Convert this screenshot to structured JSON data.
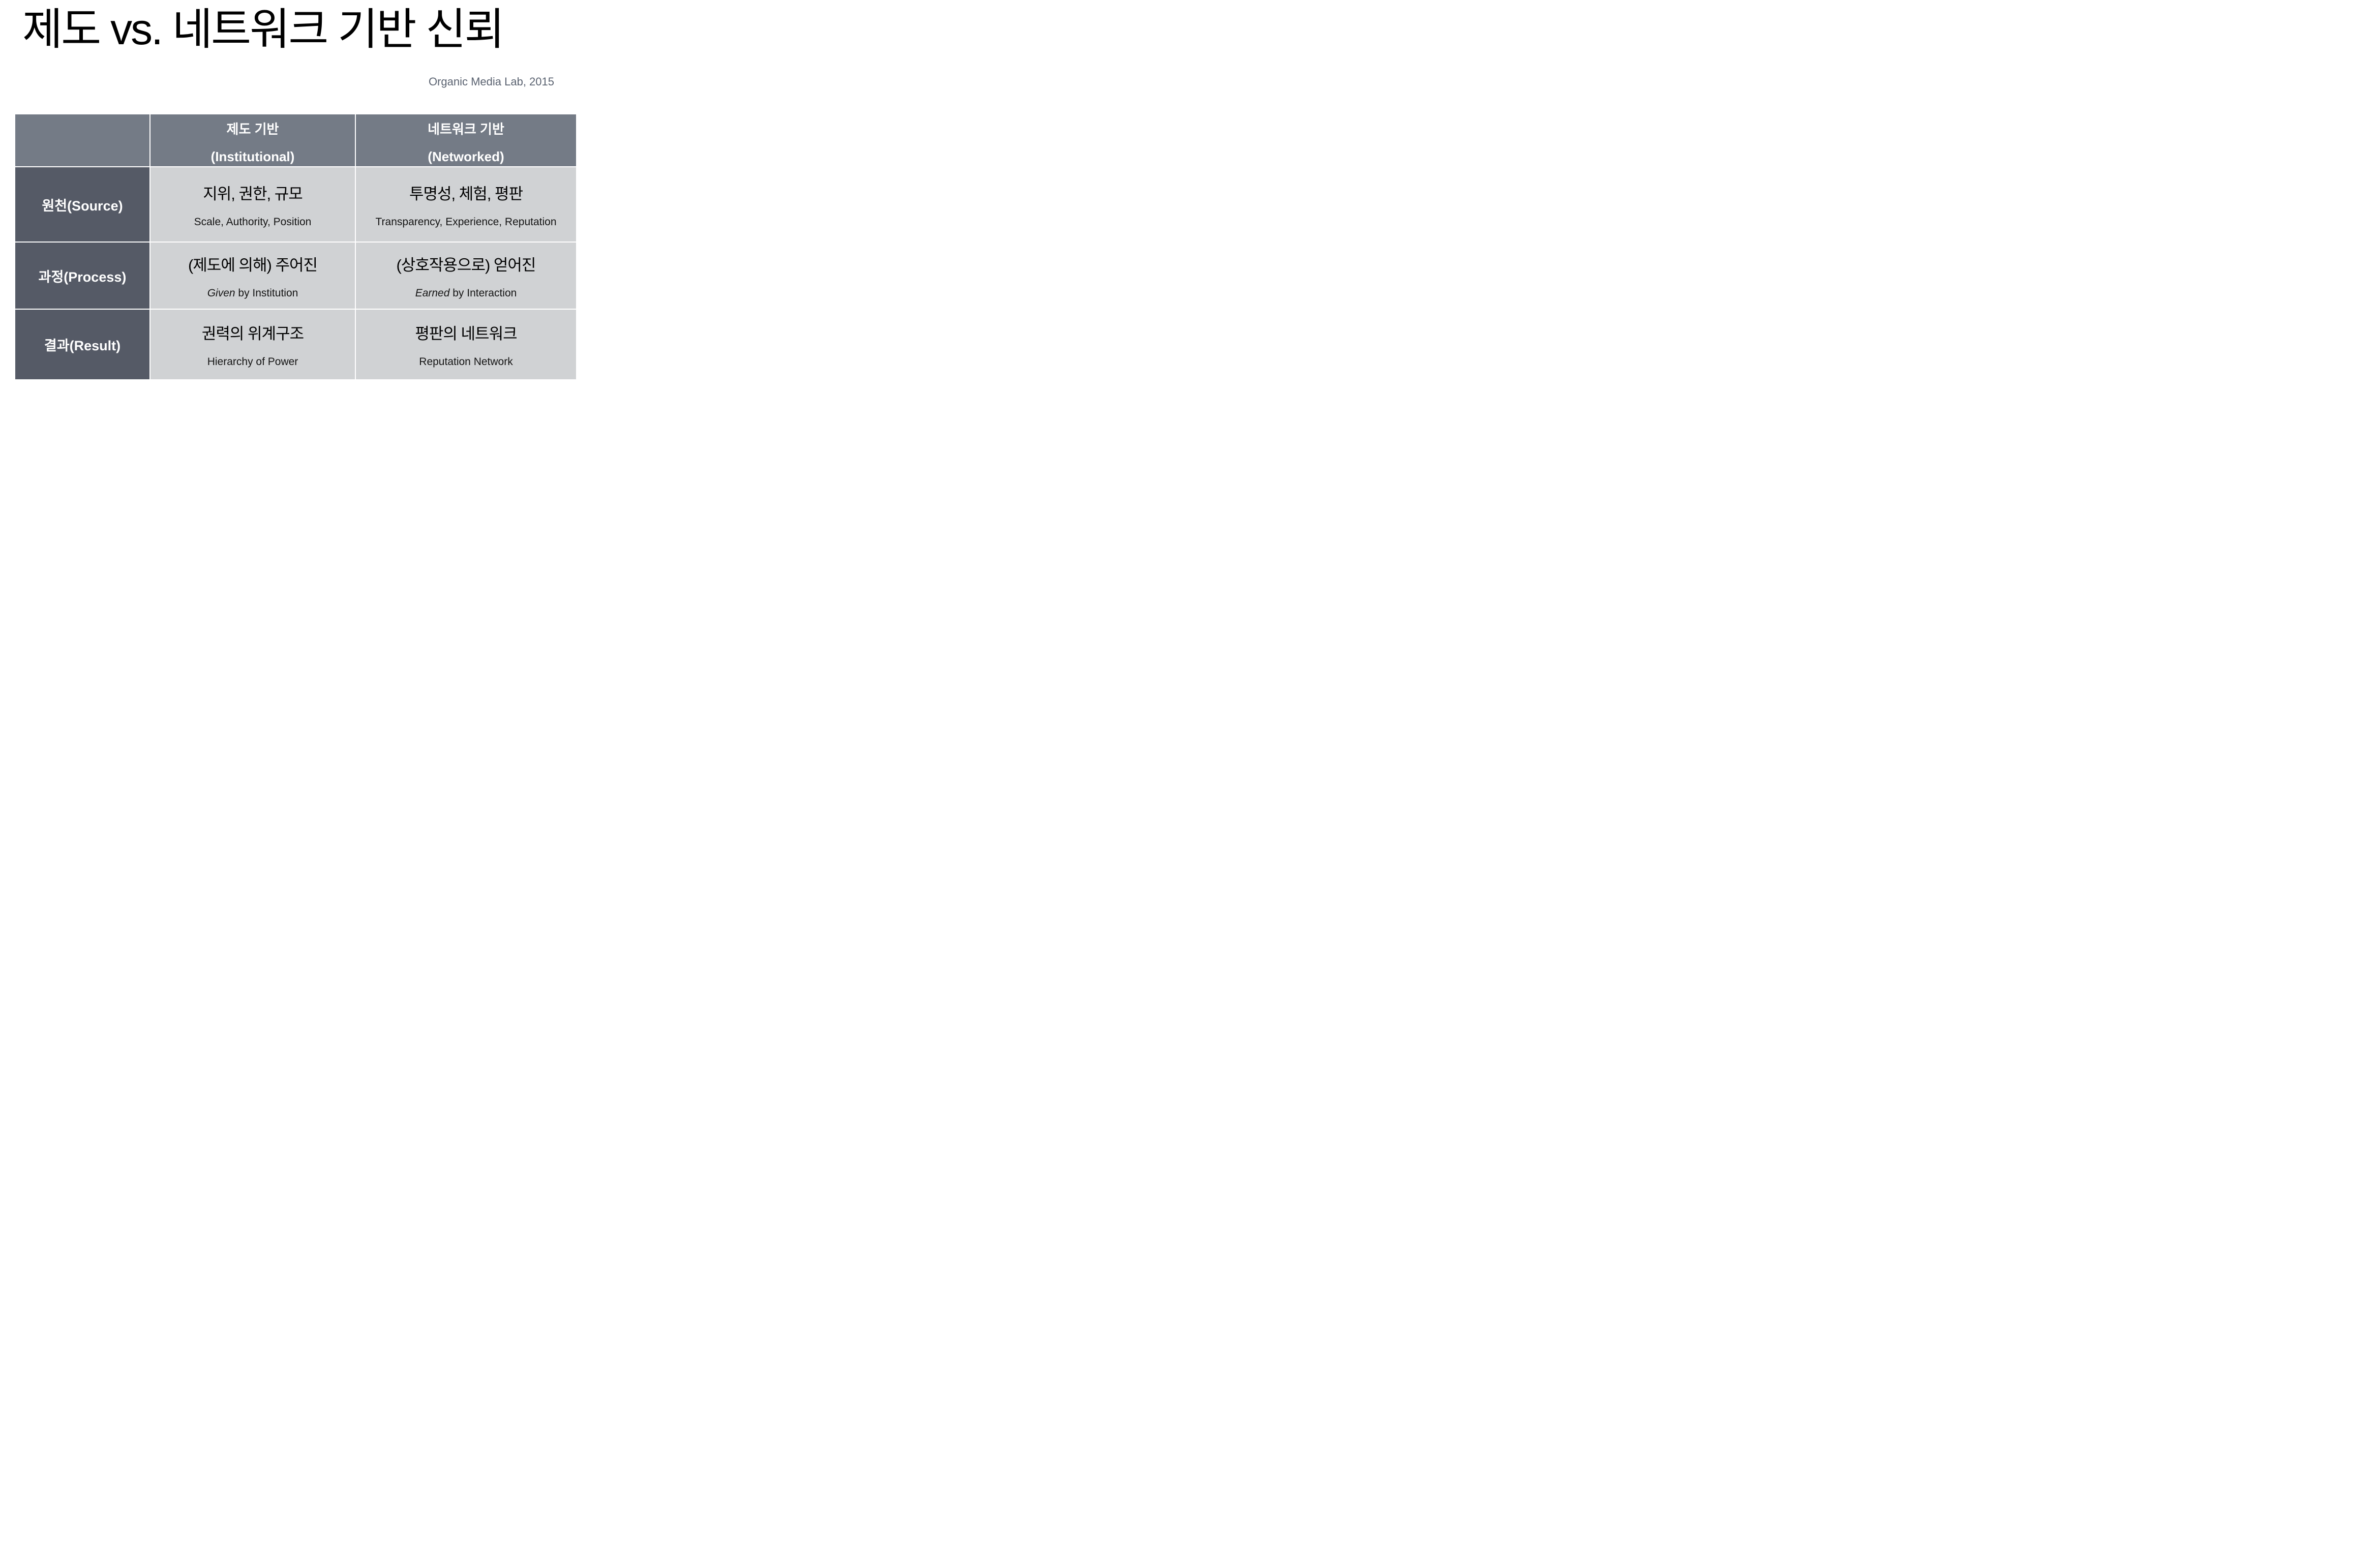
{
  "title": "제도 vs. 네트워크 기반 신뢰",
  "credit": "Organic Media Lab, 2015",
  "colors": {
    "header_bg": "#747b86",
    "row_label_bg": "#555a66",
    "data_cell_bg": "#d0d2d4",
    "divider": "#ffffff",
    "title_text": "#000000",
    "header_text": "#ffffff",
    "credit_text": "#5a6270",
    "data_text": "#000000"
  },
  "table": {
    "col_headers": [
      {
        "ko": "제도 기반",
        "en": "(Institutional)"
      },
      {
        "ko": "네트워크 기반",
        "en": "(Networked)"
      }
    ],
    "rows": [
      {
        "label": "원천(Source)",
        "cells": [
          {
            "ko": "지위, 권한, 규모",
            "en": "Scale, Authority, Position"
          },
          {
            "ko": "투명성, 체험, 평판",
            "en": "Transparency, Experience, Reputation"
          }
        ]
      },
      {
        "label": "과정(Process)",
        "cells": [
          {
            "ko": "(제도에 의해) 주어진",
            "en_italic": "Given",
            "en_rest": " by Institution"
          },
          {
            "ko": "(상호작용으로) 얻어진",
            "en_italic": "Earned",
            "en_rest": " by Interaction"
          }
        ]
      },
      {
        "label": "결과(Result)",
        "cells": [
          {
            "ko": "권력의 위계구조",
            "en": "Hierarchy of Power"
          },
          {
            "ko": "평판의 네트워크",
            "en": "Reputation Network"
          }
        ]
      }
    ]
  }
}
